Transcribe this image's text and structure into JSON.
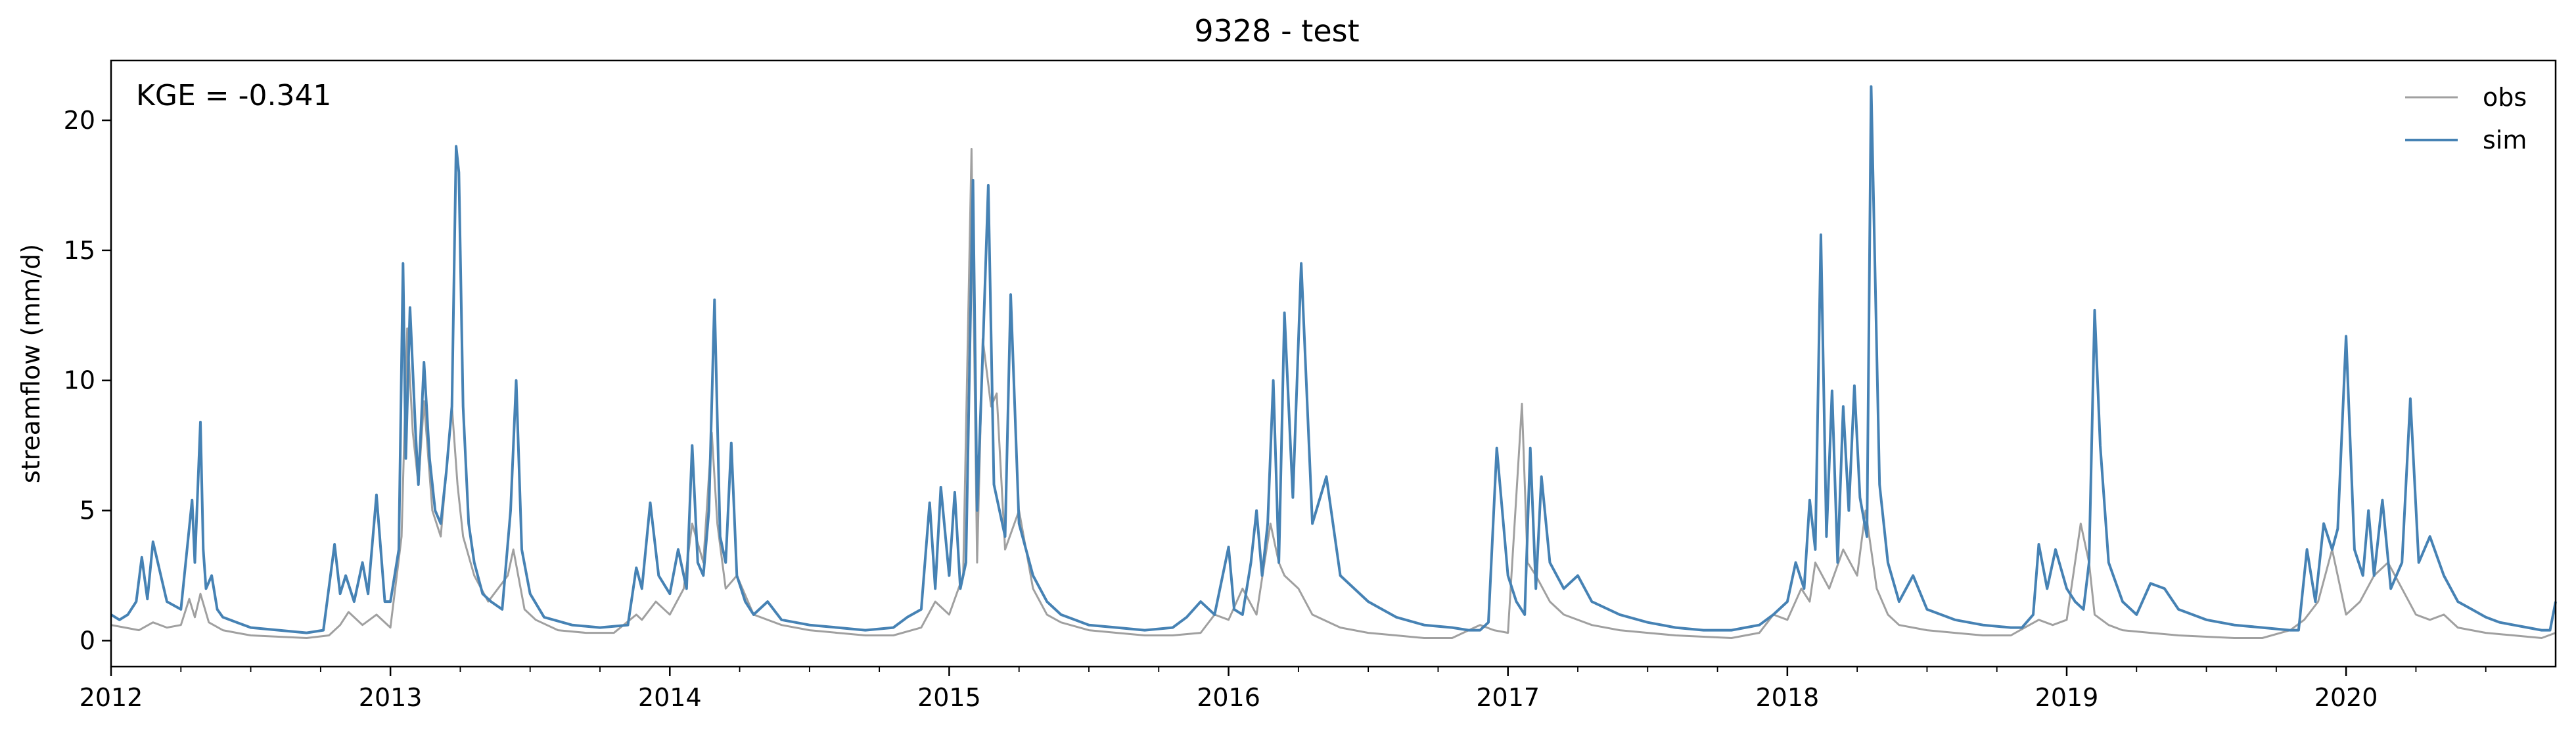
{
  "chart_data": {
    "type": "line",
    "title": "9328 - test",
    "xlabel": "",
    "ylabel": "streamflow (mm/d)",
    "annotation": "KGE = -0.341",
    "xlim": [
      2012.0,
      2020.75
    ],
    "ylim": [
      -1.0,
      22.3
    ],
    "x_ticks": [
      2012,
      2013,
      2014,
      2015,
      2016,
      2017,
      2018,
      2019,
      2020
    ],
    "x_tick_labels": [
      "2012",
      "2013",
      "2014",
      "2015",
      "2016",
      "2017",
      "2018",
      "2019",
      "2020"
    ],
    "y_ticks": [
      0,
      5,
      10,
      15,
      20
    ],
    "y_tick_labels": [
      "0",
      "5",
      "10",
      "15",
      "20"
    ],
    "grid": false,
    "legend_position": "top-right",
    "series": [
      {
        "name": "obs",
        "color": "#a0a0a0",
        "x": [
          2012.0,
          2012.05,
          2012.1,
          2012.15,
          2012.2,
          2012.25,
          2012.28,
          2012.3,
          2012.32,
          2012.35,
          2012.4,
          2012.45,
          2012.5,
          2012.6,
          2012.7,
          2012.78,
          2012.82,
          2012.85,
          2012.9,
          2012.95,
          2013.0,
          2013.04,
          2013.06,
          2013.08,
          2013.1,
          2013.12,
          2013.15,
          2013.18,
          2013.22,
          2013.24,
          2013.26,
          2013.3,
          2013.35,
          2013.42,
          2013.44,
          2013.48,
          2013.52,
          2013.6,
          2013.7,
          2013.8,
          2013.88,
          2013.9,
          2013.95,
          2014.0,
          2014.05,
          2014.08,
          2014.12,
          2014.15,
          2014.17,
          2014.2,
          2014.24,
          2014.3,
          2014.4,
          2014.5,
          2014.6,
          2014.7,
          2014.8,
          2014.9,
          2014.95,
          2015.0,
          2015.05,
          2015.08,
          2015.1,
          2015.12,
          2015.15,
          2015.17,
          2015.2,
          2015.25,
          2015.3,
          2015.35,
          2015.4,
          2015.5,
          2015.6,
          2015.7,
          2015.8,
          2015.9,
          2015.95,
          2016.0,
          2016.05,
          2016.1,
          2016.15,
          2016.18,
          2016.2,
          2016.25,
          2016.3,
          2016.4,
          2016.5,
          2016.6,
          2016.7,
          2016.8,
          2016.88,
          2016.9,
          2016.95,
          2017.0,
          2017.05,
          2017.07,
          2017.1,
          2017.15,
          2017.2,
          2017.3,
          2017.4,
          2017.5,
          2017.6,
          2017.7,
          2017.8,
          2017.9,
          2017.95,
          2018.0,
          2018.05,
          2018.08,
          2018.1,
          2018.15,
          2018.2,
          2018.25,
          2018.28,
          2018.32,
          2018.36,
          2018.4,
          2018.5,
          2018.6,
          2018.7,
          2018.8,
          2018.85,
          2018.9,
          2018.95,
          2019.0,
          2019.05,
          2019.08,
          2019.1,
          2019.15,
          2019.2,
          2019.3,
          2019.4,
          2019.5,
          2019.6,
          2019.7,
          2019.8,
          2019.85,
          2019.9,
          2019.95,
          2020.0,
          2020.05,
          2020.1,
          2020.15,
          2020.2,
          2020.25,
          2020.3,
          2020.35,
          2020.4,
          2020.5,
          2020.6,
          2020.7,
          2020.75
        ],
        "y": [
          0.6,
          0.5,
          0.4,
          0.7,
          0.5,
          0.6,
          1.6,
          0.9,
          1.8,
          0.7,
          0.4,
          0.3,
          0.2,
          0.15,
          0.1,
          0.2,
          0.6,
          1.1,
          0.6,
          1.0,
          0.5,
          4.0,
          12.0,
          8.0,
          6.0,
          9.2,
          5.0,
          4.0,
          9.0,
          6.0,
          4.0,
          2.5,
          1.5,
          2.5,
          3.5,
          1.2,
          0.8,
          0.4,
          0.3,
          0.3,
          1.0,
          0.8,
          1.5,
          1.0,
          2.0,
          4.5,
          3.0,
          8.0,
          4.5,
          2.0,
          2.5,
          1.0,
          0.6,
          0.4,
          0.3,
          0.2,
          0.2,
          0.5,
          1.5,
          1.0,
          2.5,
          18.9,
          3.0,
          11.6,
          9.0,
          9.5,
          3.5,
          5.0,
          2.0,
          1.0,
          0.7,
          0.4,
          0.3,
          0.2,
          0.2,
          0.3,
          1.0,
          0.8,
          2.0,
          1.0,
          4.5,
          3.0,
          2.5,
          2.0,
          1.0,
          0.5,
          0.3,
          0.2,
          0.1,
          0.1,
          0.5,
          0.6,
          0.4,
          0.3,
          9.1,
          3.0,
          2.5,
          1.5,
          1.0,
          0.6,
          0.4,
          0.3,
          0.2,
          0.15,
          0.1,
          0.3,
          1.0,
          0.8,
          2.0,
          1.5,
          3.0,
          2.0,
          3.5,
          2.5,
          5.0,
          2.0,
          1.0,
          0.6,
          0.4,
          0.3,
          0.2,
          0.2,
          0.5,
          0.8,
          0.6,
          0.8,
          4.5,
          3.0,
          1.0,
          0.6,
          0.4,
          0.3,
          0.2,
          0.15,
          0.1,
          0.1,
          0.4,
          0.8,
          1.5,
          3.5,
          1.0,
          1.5,
          2.5,
          3.0,
          2.0,
          1.0,
          0.8,
          1.0,
          0.5,
          0.3,
          0.2,
          0.1,
          0.3
        ]
      },
      {
        "name": "sim",
        "color": "#4682b4",
        "x": [
          2012.0,
          2012.03,
          2012.06,
          2012.09,
          2012.11,
          2012.13,
          2012.15,
          2012.2,
          2012.25,
          2012.29,
          2012.3,
          2012.32,
          2012.33,
          2012.34,
          2012.36,
          2012.38,
          2012.4,
          2012.45,
          2012.5,
          2012.6,
          2012.7,
          2012.76,
          2012.8,
          2012.82,
          2012.84,
          2012.87,
          2012.9,
          2012.92,
          2012.95,
          2012.98,
          2013.0,
          2013.03,
          2013.045,
          2013.055,
          2013.07,
          2013.09,
          2013.1,
          2013.12,
          2013.14,
          2013.16,
          2013.18,
          2013.2,
          2013.22,
          2013.235,
          2013.245,
          2013.26,
          2013.28,
          2013.3,
          2013.33,
          2013.36,
          2013.4,
          2013.43,
          2013.45,
          2013.47,
          2013.5,
          2013.55,
          2013.65,
          2013.75,
          2013.85,
          2013.88,
          2013.9,
          2013.93,
          2013.96,
          2014.0,
          2014.03,
          2014.06,
          2014.08,
          2014.1,
          2014.12,
          2014.14,
          2014.16,
          2014.18,
          2014.2,
          2014.22,
          2014.24,
          2014.27,
          2014.3,
          2014.35,
          2014.4,
          2014.5,
          2014.6,
          2014.7,
          2014.8,
          2014.85,
          2014.9,
          2014.93,
          2014.95,
          2014.97,
          2015.0,
          2015.02,
          2015.04,
          2015.06,
          2015.085,
          2015.1,
          2015.12,
          2015.14,
          2015.16,
          2015.18,
          2015.2,
          2015.22,
          2015.25,
          2015.3,
          2015.35,
          2015.4,
          2015.45,
          2015.5,
          2015.6,
          2015.7,
          2015.8,
          2015.85,
          2015.9,
          2015.95,
          2016.0,
          2016.02,
          2016.05,
          2016.08,
          2016.1,
          2016.12,
          2016.14,
          2016.16,
          2016.18,
          2016.2,
          2016.23,
          2016.26,
          2016.3,
          2016.35,
          2016.4,
          2016.5,
          2016.6,
          2016.7,
          2016.8,
          2016.86,
          2016.9,
          2016.93,
          2016.96,
          2017.0,
          2017.03,
          2017.06,
          2017.08,
          2017.1,
          2017.12,
          2017.15,
          2017.2,
          2017.25,
          2017.3,
          2017.4,
          2017.5,
          2017.6,
          2017.7,
          2017.8,
          2017.85,
          2017.9,
          2017.95,
          2018.0,
          2018.03,
          2018.06,
          2018.08,
          2018.1,
          2018.12,
          2018.14,
          2018.16,
          2018.18,
          2018.2,
          2018.22,
          2018.24,
          2018.26,
          2018.285,
          2018.3,
          2018.33,
          2018.36,
          2018.4,
          2018.45,
          2018.5,
          2018.6,
          2018.7,
          2018.8,
          2018.84,
          2018.88,
          2018.9,
          2018.93,
          2018.96,
          2019.0,
          2019.03,
          2019.06,
          2019.08,
          2019.1,
          2019.12,
          2019.15,
          2019.2,
          2019.25,
          2019.3,
          2019.35,
          2019.4,
          2019.5,
          2019.6,
          2019.7,
          2019.8,
          2019.83,
          2019.86,
          2019.89,
          2019.92,
          2019.95,
          2019.97,
          2020.0,
          2020.03,
          2020.06,
          2020.08,
          2020.1,
          2020.13,
          2020.16,
          2020.2,
          2020.23,
          2020.26,
          2020.3,
          2020.35,
          2020.4,
          2020.45,
          2020.5,
          2020.55,
          2020.6,
          2020.65,
          2020.7,
          2020.73,
          2020.75
        ],
        "y": [
          1.0,
          0.8,
          1.0,
          1.5,
          3.2,
          1.6,
          3.8,
          1.5,
          1.2,
          5.4,
          3.0,
          8.4,
          3.5,
          2.0,
          2.5,
          1.2,
          0.9,
          0.7,
          0.5,
          0.4,
          0.3,
          0.4,
          3.7,
          1.8,
          2.5,
          1.5,
          3.0,
          1.8,
          5.6,
          1.5,
          1.5,
          3.5,
          14.5,
          7.0,
          12.8,
          8.0,
          6.0,
          10.7,
          7.0,
          5.0,
          4.5,
          6.5,
          9.0,
          19.0,
          18.0,
          9.0,
          4.5,
          3.0,
          1.8,
          1.5,
          1.2,
          5.0,
          10.0,
          3.5,
          1.8,
          0.9,
          0.6,
          0.5,
          0.6,
          2.8,
          2.0,
          5.3,
          2.5,
          1.8,
          3.5,
          2.0,
          7.5,
          3.0,
          2.5,
          5.0,
          13.1,
          4.0,
          3.0,
          7.6,
          2.5,
          1.5,
          1.0,
          1.5,
          0.8,
          0.6,
          0.5,
          0.4,
          0.5,
          0.9,
          1.2,
          5.3,
          2.0,
          5.9,
          2.5,
          5.7,
          2.0,
          3.0,
          17.7,
          5.0,
          11.0,
          17.5,
          6.0,
          5.0,
          4.0,
          13.3,
          4.5,
          2.5,
          1.5,
          1.0,
          0.8,
          0.6,
          0.5,
          0.4,
          0.5,
          0.9,
          1.5,
          1.0,
          3.6,
          1.2,
          1.0,
          3.0,
          5.0,
          2.5,
          4.5,
          10.0,
          3.0,
          12.6,
          5.5,
          14.5,
          4.5,
          6.3,
          2.5,
          1.5,
          0.9,
          0.6,
          0.5,
          0.4,
          0.4,
          0.7,
          7.4,
          2.5,
          1.5,
          1.0,
          7.4,
          2.0,
          6.3,
          3.0,
          2.0,
          2.5,
          1.5,
          1.0,
          0.7,
          0.5,
          0.4,
          0.4,
          0.5,
          0.6,
          1.0,
          1.5,
          3.0,
          2.0,
          5.4,
          3.5,
          15.6,
          4.0,
          9.6,
          3.0,
          9.0,
          5.0,
          9.8,
          5.5,
          4.0,
          21.3,
          6.0,
          3.0,
          1.5,
          2.5,
          1.2,
          0.8,
          0.6,
          0.5,
          0.5,
          1.0,
          3.7,
          2.0,
          3.5,
          2.0,
          1.5,
          1.2,
          3.0,
          12.7,
          7.5,
          3.0,
          1.5,
          1.0,
          2.2,
          2.0,
          1.2,
          0.8,
          0.6,
          0.5,
          0.4,
          0.4,
          3.5,
          1.5,
          4.5,
          3.5,
          4.3,
          11.7,
          3.5,
          2.5,
          5.0,
          2.5,
          5.4,
          2.0,
          3.0,
          9.3,
          3.0,
          4.0,
          2.5,
          1.5,
          1.2,
          0.9,
          0.7,
          0.6,
          0.5,
          0.4,
          0.4,
          1.5
        ]
      }
    ]
  }
}
